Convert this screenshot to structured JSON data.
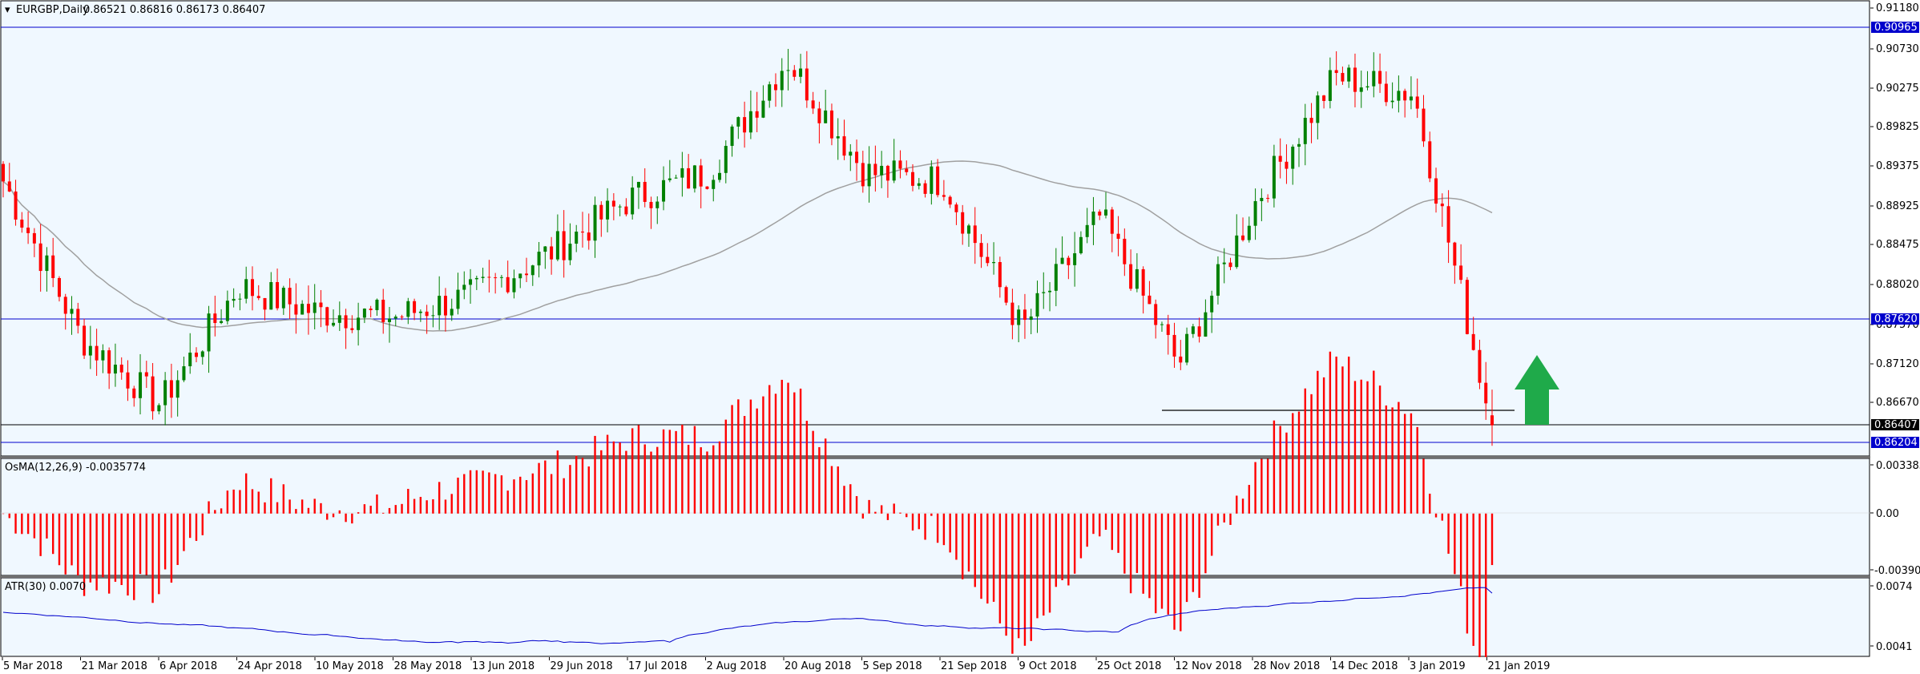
{
  "header": {
    "symbol_caret": "▾",
    "symbol": "EURGBP,Daily",
    "ohlc": "0.86521 0.86816 0.86173 0.86407"
  },
  "indicators": {
    "osma_label": "OsMA(12,26,9) -0.0035774",
    "atr_label": "ATR(30) 0.0070"
  },
  "price_axis": {
    "ticks": [
      "0.91180",
      "0.90730",
      "0.90275",
      "0.89825",
      "0.89375",
      "0.88925",
      "0.88475",
      "0.88020",
      "0.87570",
      "0.87120",
      "0.86670"
    ],
    "tags": {
      "upper": "0.90965",
      "middle": "0.87620",
      "current": "0.86407",
      "lower": "0.86204"
    }
  },
  "osma_axis": {
    "ticks": [
      "0.0033855",
      "0.00",
      "-0.0039089"
    ]
  },
  "atr_axis": {
    "ticks": [
      "0.0074",
      "0.0041"
    ]
  },
  "time_axis": {
    "labels": [
      "5 Mar 2018",
      "21 Mar 2018",
      "6 Apr 2018",
      "24 Apr 2018",
      "10 May 2018",
      "28 May 2018",
      "13 Jun 2018",
      "29 Jun 2018",
      "17 Jul 2018",
      "2 Aug 2018",
      "20 Aug 2018",
      "5 Sep 2018",
      "21 Sep 2018",
      "9 Oct 2018",
      "25 Oct 2018",
      "12 Nov 2018",
      "28 Nov 2018",
      "14 Dec 2018",
      "3 Jan 2019",
      "21 Jan 2019"
    ]
  },
  "chart_data": {
    "type": "candlestick",
    "symbol": "EURGBP",
    "timeframe": "Daily",
    "last_bar": {
      "open": 0.86521,
      "high": 0.86816,
      "low": 0.86173,
      "close": 0.86407
    },
    "horizontal_levels": [
      0.90965,
      0.8762,
      0.86407,
      0.86204,
      0.866
    ],
    "ylim": [
      0.8615,
      0.9122
    ],
    "candle_keypoints": [
      {
        "date": "5 Mar 2018",
        "close": 0.892
      },
      {
        "date": "21 Mar 2018",
        "close": 0.874
      },
      {
        "date": "6 Apr 2018",
        "close": 0.8665
      },
      {
        "date": "24 Apr 2018",
        "close": 0.88
      },
      {
        "date": "10 May 2018",
        "close": 0.877
      },
      {
        "date": "28 May 2018",
        "close": 0.8765
      },
      {
        "date": "13 Jun 2018",
        "close": 0.879
      },
      {
        "date": "29 Jun 2018",
        "close": 0.884
      },
      {
        "date": "17 Jul 2018",
        "close": 0.89
      },
      {
        "date": "2 Aug 2018",
        "close": 0.893
      },
      {
        "date": "20 Aug 2018",
        "close": 0.906
      },
      {
        "date": "5 Sep 2018",
        "close": 0.893
      },
      {
        "date": "21 Sep 2018",
        "close": 0.892
      },
      {
        "date": "9 Oct 2018",
        "close": 0.875
      },
      {
        "date": "25 Oct 2018",
        "close": 0.888
      },
      {
        "date": "12 Nov 2018",
        "close": 0.871
      },
      {
        "date": "28 Nov 2018",
        "close": 0.89
      },
      {
        "date": "14 Dec 2018",
        "close": 0.904
      },
      {
        "date": "3 Jan 2019",
        "close": 0.902
      },
      {
        "date": "21 Jan 2019",
        "close": 0.864
      }
    ],
    "osma": {
      "current": -0.0035774,
      "ylim": [
        -0.0039089,
        0.0033855
      ]
    },
    "atr": {
      "current": 0.007,
      "ylim": [
        0.0041,
        0.0074
      ]
    }
  },
  "colors": {
    "background": "#f0f8ff",
    "bull": "#008000",
    "bear": "#ff0000",
    "level_line": "#0000cc",
    "ma_line": "#a0a0a0",
    "atr_line": "#0000cc",
    "arrow": "#1faa4a"
  }
}
